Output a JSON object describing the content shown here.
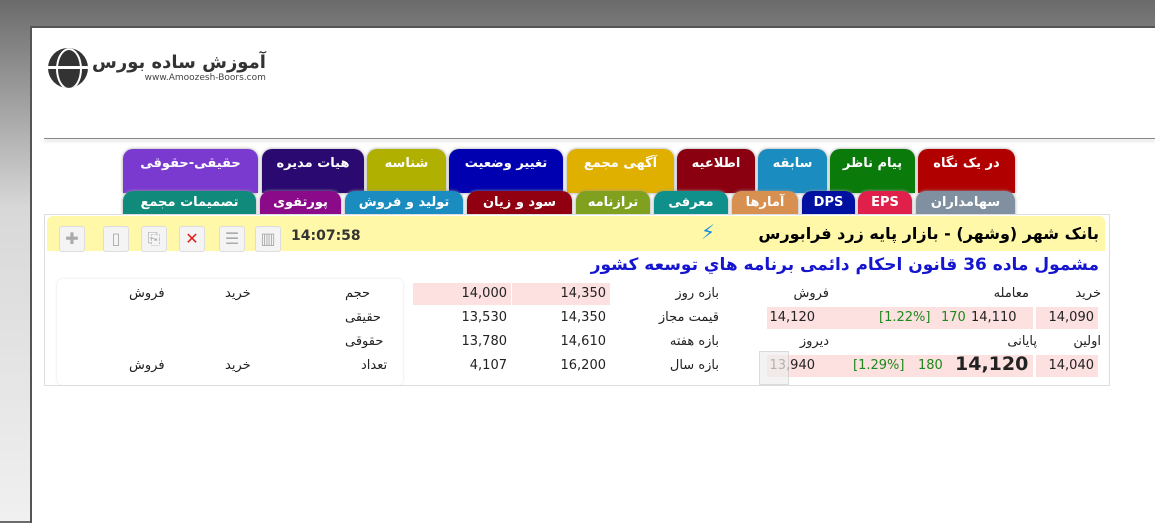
{
  "logo": {
    "fa": "آموزش ساده بورس",
    "en": "www.Amoozesh-Boors.com"
  },
  "tabs_row1": [
    {
      "label": "در یک نگاه",
      "color": "#b00000"
    },
    {
      "label": "پیام ناظر",
      "color": "#0a7a0a"
    },
    {
      "label": "سابقه",
      "color": "#1a8cc0"
    },
    {
      "label": "اطلاعیه",
      "color": "#8b0010"
    },
    {
      "label": "آگهی مجمع",
      "color": "#e0b000"
    },
    {
      "label": "تغییر وضعیت",
      "color": "#0000b0"
    },
    {
      "label": "شناسه",
      "color": "#b0b000"
    },
    {
      "label": "هیات مدیره",
      "color": "#2a0a70"
    },
    {
      "label": "حقیقی-حقوقی",
      "color": "#7a3ad0"
    }
  ],
  "tabs_row2": [
    {
      "label": "سهامداران",
      "color": "#8090a0"
    },
    {
      "label": "EPS",
      "color": "#e0204a"
    },
    {
      "label": "DPS",
      "color": "#0010a0"
    },
    {
      "label": "آمارها",
      "color": "#d89050"
    },
    {
      "label": "معرفی",
      "color": "#10908a"
    },
    {
      "label": "ترازنامه",
      "color": "#80a020"
    },
    {
      "label": "سود و زیان",
      "color": "#900010"
    },
    {
      "label": "تولید و فروش",
      "color": "#1a8cc0"
    },
    {
      "label": "پورتفوی",
      "color": "#8a0a8a"
    },
    {
      "label": "تصمیمات مجمع",
      "color": "#108a7a"
    }
  ],
  "header": {
    "title": "بانک شهر (وشهر) - بازار پایه زرد فرابورس",
    "time": "14:07:58"
  },
  "subtitle": "مشمول ماده 36 قانون احکام دائمی برنامه هاي توسعه کشور",
  "prices": {
    "buy_label": "خرید",
    "trade_label": "معامله",
    "sell_label": "فروش",
    "buy": "14,090",
    "trade": "14,110",
    "trade_change": "170",
    "trade_pct": "[1.22%]",
    "sell": "14,120",
    "first_label": "اولین",
    "last_label": "پایانی",
    "yesterday_label": "دیروز",
    "first": "14,040",
    "last": "14,120",
    "last_change": "180",
    "last_pct": "[1.29%]",
    "yesterday": "13,940"
  },
  "ranges": [
    {
      "label": "بازه روز",
      "a": "14,350",
      "b": "14,000"
    },
    {
      "label": "قیمت مجاز",
      "a": "14,350",
      "b": "13,530"
    },
    {
      "label": "بازه هفته",
      "a": "14,610",
      "b": "13,780"
    },
    {
      "label": "بازه سال",
      "a": "16,200",
      "b": "4,107"
    }
  ],
  "traders": {
    "volume": "حجم",
    "individual": "حقیقی",
    "legal": "حقوقی",
    "count": "تعداد",
    "buy": "خرید",
    "sell": "فروش"
  }
}
